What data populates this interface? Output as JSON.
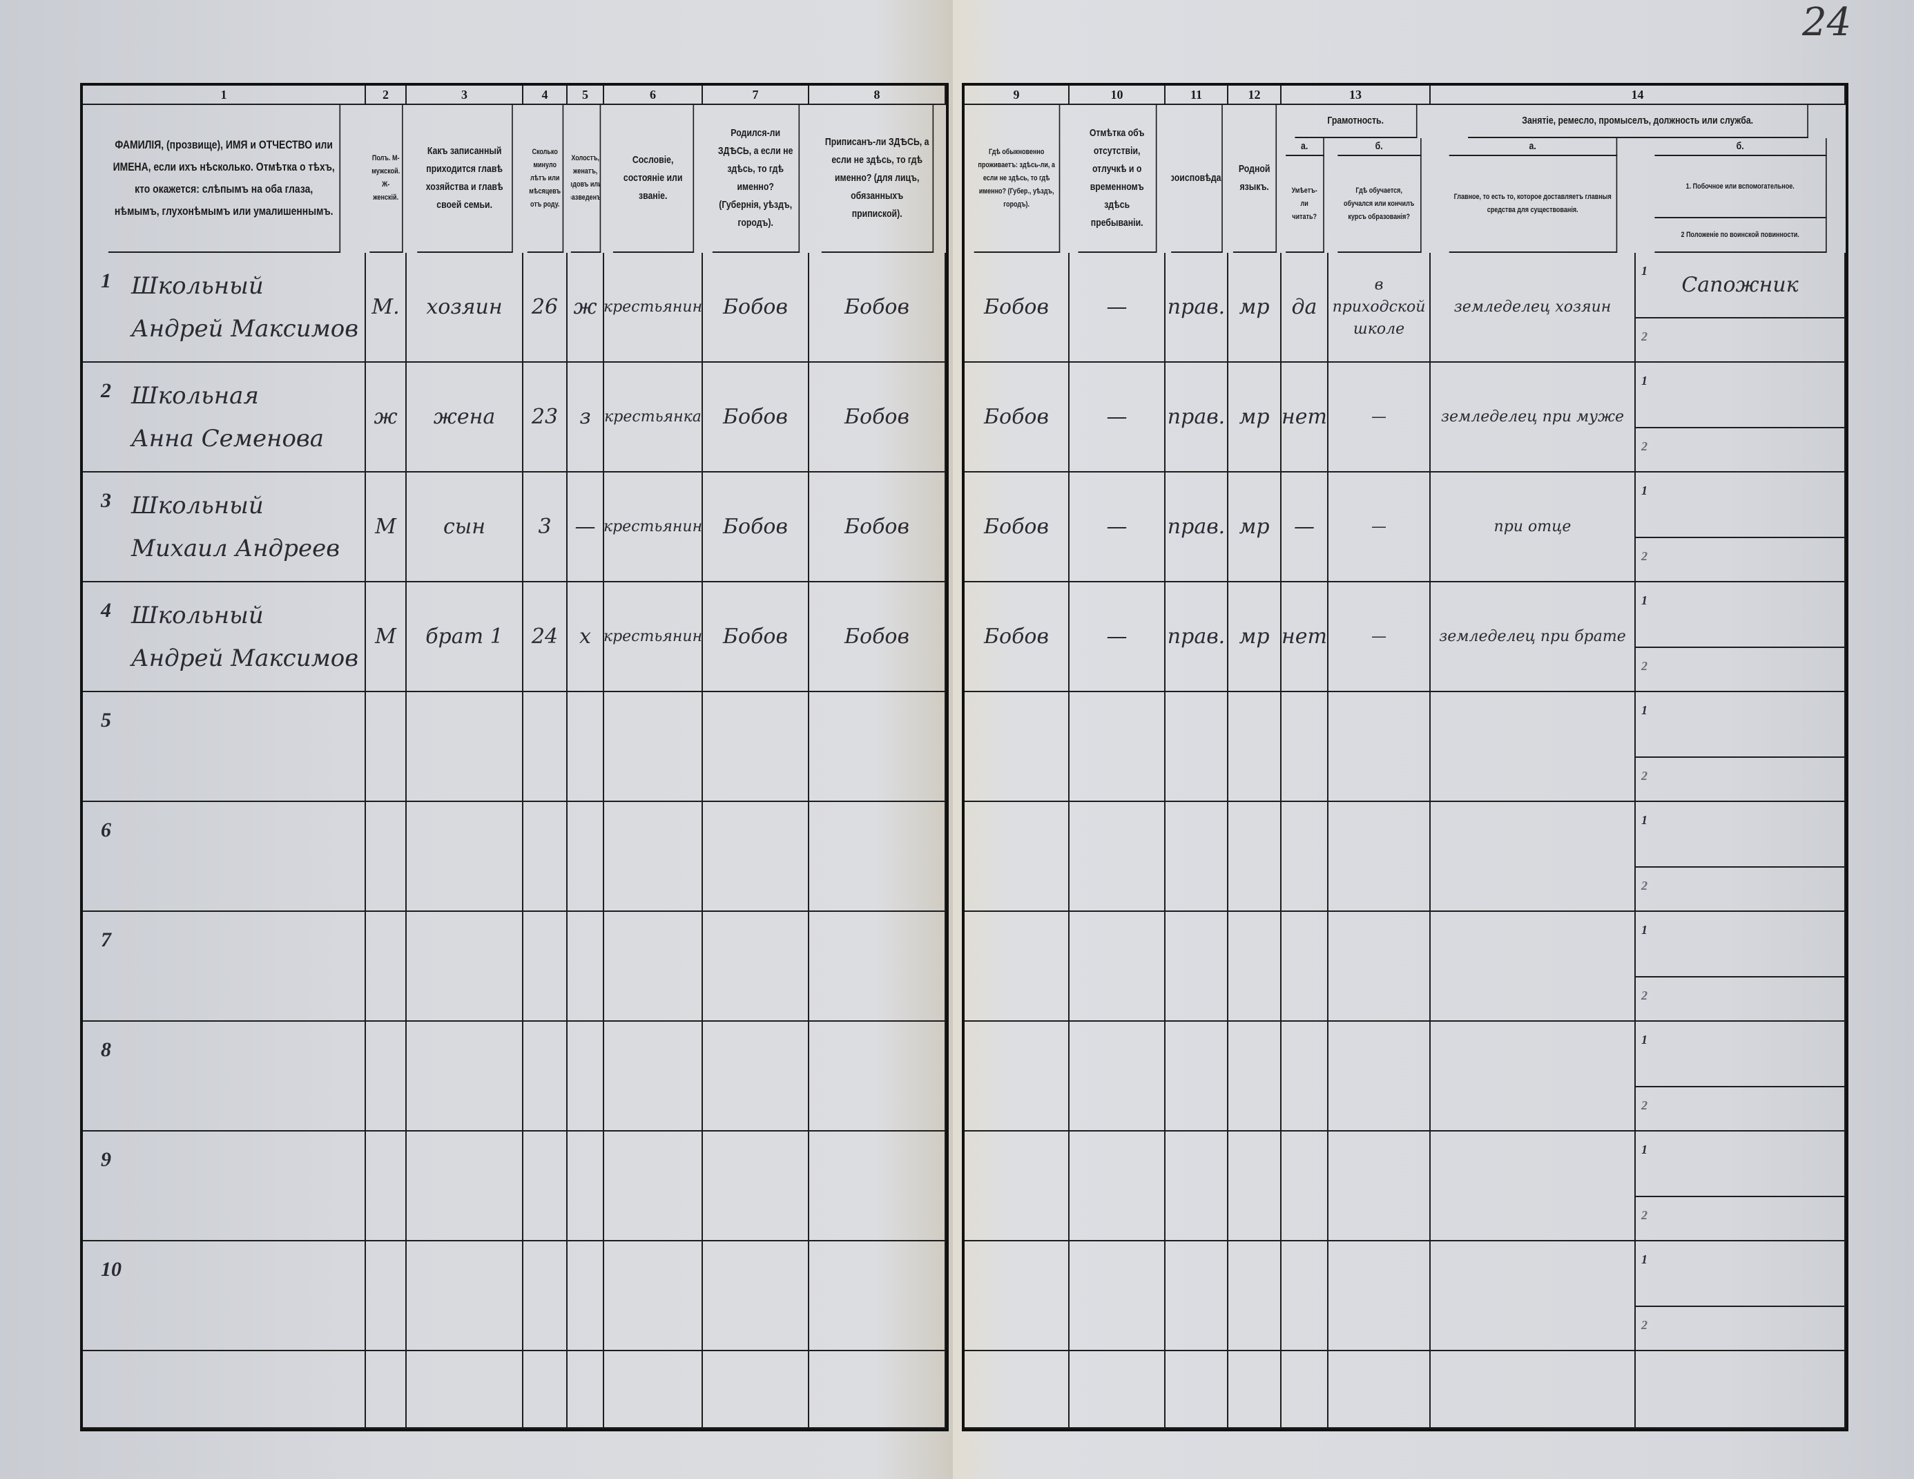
{
  "page_number": "24",
  "left_header": {
    "col_numbers": [
      "1",
      "2",
      "3",
      "4",
      "5",
      "6",
      "7",
      "8"
    ],
    "col1": "ФАМИЛІЯ, (прозвище), ИМЯ и ОТЧЕСТВО или ИМЕНА, если ихъ нѣсколько. Отмѣтка о тѣхъ, кто окажется: слѣпымъ на оба глаза, нѣмымъ, глухонѣмымъ или умалишеннымъ.",
    "col2": "Полъ. М-мужской. Ж-женскій.",
    "col3": "Какъ записанный приходится главѣ хозяйства и главѣ своей семьи.",
    "col4": "Сколько минуло лѣтъ или мѣсяцевъ отъ роду.",
    "col5": "Холостъ, женатъ, вдовъ или разведенъ.",
    "col6": "Сословіе, состояніе или званіе.",
    "col7": "Родился-ли ЗДѢСЬ, а если не здѣсь, то гдѣ именно? (Губернія, уѣздъ, городъ).",
    "col8": "Приписанъ-ли ЗДѢСЬ, а если не здѣсь, то гдѣ именно? (для лицъ, обязанныхъ припиской)."
  },
  "right_header": {
    "col_numbers": [
      "9",
      "10",
      "11",
      "12",
      "13",
      "14"
    ],
    "col9": "Гдѣ обыкновенно проживаетъ: здѣсь-ли, а если не здѣсь, то гдѣ именно? (Губер., уѣздъ, городъ).",
    "col10": "Отмѣтка объ отсутствіи, отлучкѣ и о временномъ здѣсь пребываніи.",
    "col11": "Вѣроисповѣданіе.",
    "col12": "Родной языкъ.",
    "col13_title": "Грамотность.",
    "col13a_letter": "а.",
    "col13a": "Умѣетъ-ли читать?",
    "col13b_letter": "б.",
    "col13b": "Гдѣ обучается, обучался или кончилъ курсъ образованія?",
    "col14_title": "Занятіе, ремесло, промыселъ, должность или служба.",
    "col14a_letter": "а.",
    "col14a": "Главное, то есть то, которое доставляетъ главныя средства для существованія.",
    "col14b_letter": "б.",
    "col14b1": "1. Побочное или вспомогательное.",
    "col14b2": "2 Положеніе по воинской повинности."
  },
  "sub_labels": [
    "1",
    "2"
  ],
  "rows": [
    {
      "n": "1",
      "surname": "Школьный",
      "name": "Андрей Максимов",
      "sex": "М.",
      "relation": "хозяин",
      "age": "26",
      "marital": "ж",
      "estate": "крестьянин",
      "born": "Бобов",
      "registered": "Бобов",
      "resides": "Бобов",
      "absence": "—",
      "religion": "прав.",
      "language": "мр",
      "literate": "да",
      "education": "в приходской школе",
      "occupation": "земледелец хозяин",
      "side": "Сапожник",
      "military": ""
    },
    {
      "n": "2",
      "surname": "Школьная",
      "name": "Анна Семенова",
      "sex": "ж",
      "relation": "жена",
      "age": "23",
      "marital": "з",
      "estate": "крестьянка",
      "born": "Бобов",
      "registered": "Бобов",
      "resides": "Бобов",
      "absence": "—",
      "religion": "прав.",
      "language": "мр",
      "literate": "нет",
      "education": "—",
      "occupation": "земледелец при муже",
      "side": "",
      "military": ""
    },
    {
      "n": "3",
      "surname": "Школьный",
      "name": "Михаил Андреев",
      "sex": "М",
      "relation": "сын",
      "age": "3",
      "marital": "—",
      "estate": "крестьянин",
      "born": "Бобов",
      "registered": "Бобов",
      "resides": "Бобов",
      "absence": "—",
      "religion": "прав.",
      "language": "мр",
      "literate": "—",
      "education": "—",
      "occupation": "при отце",
      "side": "",
      "military": ""
    },
    {
      "n": "4",
      "surname": "Школьный",
      "name": "Андрей Максимов",
      "sex": "М",
      "relation": "брат 1",
      "age": "24",
      "marital": "х",
      "estate": "крестьянин",
      "born": "Бобов",
      "registered": "Бобов",
      "resides": "Бобов",
      "absence": "—",
      "religion": "прав.",
      "language": "мр",
      "literate": "нет",
      "education": "—",
      "occupation": "земледелец при брате",
      "side": "",
      "military": ""
    },
    {
      "n": "5"
    },
    {
      "n": "6"
    },
    {
      "n": "7"
    },
    {
      "n": "8"
    },
    {
      "n": "9"
    },
    {
      "n": "10"
    }
  ]
}
